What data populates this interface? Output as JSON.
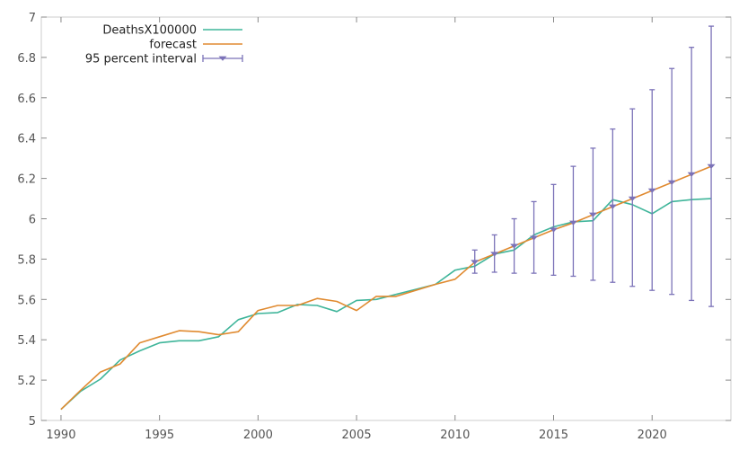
{
  "chart_data": {
    "type": "line",
    "x": [
      1990,
      1991,
      1992,
      1993,
      1994,
      1995,
      1996,
      1997,
      1998,
      1999,
      2000,
      2001,
      2002,
      2003,
      2004,
      2005,
      2006,
      2007,
      2008,
      2009,
      2010,
      2011,
      2012,
      2013,
      2014,
      2015,
      2016,
      2017,
      2018,
      2019,
      2020,
      2021,
      2022,
      2023
    ],
    "xlim": [
      1989,
      2024
    ],
    "ylim": [
      5.0,
      7.0
    ],
    "xticks": [
      1990,
      1995,
      2000,
      2005,
      2010,
      2015,
      2020
    ],
    "yticks": [
      5,
      5.2,
      5.4,
      5.6,
      5.8,
      6,
      6.2,
      6.4,
      6.6,
      6.8,
      7
    ],
    "xtick_labels": [
      "1990",
      "1995",
      "2000",
      "2005",
      "2010",
      "2015",
      "2020"
    ],
    "ytick_labels": [
      "5",
      "5.2",
      "5.4",
      "5.6",
      "5.8",
      "6",
      "6.2",
      "6.4",
      "6.6",
      "6.8",
      "7"
    ],
    "grid": false,
    "legend_position": "top-left",
    "series": [
      {
        "name": "DeathsX100000",
        "color": "#3fb59a",
        "values": [
          5.055,
          5.145,
          5.205,
          5.3,
          5.345,
          5.385,
          5.395,
          5.395,
          5.415,
          5.5,
          5.53,
          5.535,
          5.575,
          5.57,
          5.54,
          5.595,
          5.6,
          5.625,
          5.65,
          5.675,
          5.745,
          5.765,
          5.825,
          5.845,
          5.92,
          5.96,
          5.985,
          5.99,
          6.095,
          6.07,
          6.025,
          6.085,
          6.095,
          6.1
        ]
      },
      {
        "name": "forecast",
        "color": "#e08a30",
        "values": [
          5.055,
          5.15,
          5.24,
          5.28,
          5.385,
          5.415,
          5.445,
          5.44,
          5.425,
          5.44,
          5.545,
          5.57,
          5.57,
          5.605,
          5.59,
          5.545,
          5.615,
          5.615,
          5.645,
          5.675,
          5.7,
          5.785,
          5.825,
          5.865,
          5.905,
          5.945,
          5.98,
          6.02,
          6.06,
          6.1,
          6.14,
          6.18,
          6.22,
          6.26
        ]
      }
    ],
    "interval": {
      "name": "95 percent interval",
      "color": "#7b72b8",
      "x": [
        2011,
        2012,
        2013,
        2014,
        2015,
        2016,
        2017,
        2018,
        2019,
        2020,
        2021,
        2022,
        2023
      ],
      "center": [
        5.785,
        5.825,
        5.865,
        5.905,
        5.945,
        5.98,
        6.02,
        6.06,
        6.1,
        6.14,
        6.18,
        6.22,
        6.26
      ],
      "low": [
        5.73,
        5.735,
        5.73,
        5.73,
        5.72,
        5.715,
        5.695,
        5.685,
        5.665,
        5.645,
        5.625,
        5.595,
        5.565
      ],
      "high": [
        5.845,
        5.92,
        6.0,
        6.085,
        6.17,
        6.26,
        6.35,
        6.445,
        6.545,
        6.64,
        6.745,
        6.85,
        6.955
      ]
    }
  }
}
